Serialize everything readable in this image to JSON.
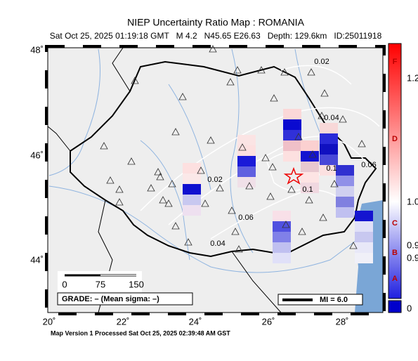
{
  "header": {
    "title": "NIEP Uncertainty Ratio Map : ROMANIA",
    "subtitle": "Sat Oct 25, 2025 01:19:18 GMT   M 4.2   N45.65 E26.63   Depth: 129.6km   ID:25011918"
  },
  "map": {
    "lat_labels": [
      "48˚",
      "46˚",
      "44˚"
    ],
    "lon_labels": [
      "20˚",
      "22˚",
      "24˚",
      "26˚",
      "28˚"
    ],
    "contour_labels": [
      "0.02",
      "0.04",
      "0.06",
      "0.02",
      "0.06",
      "0.04",
      "0.1",
      "0.1"
    ],
    "scale_labels": [
      "0",
      "75",
      "150"
    ],
    "grade": "GRADE: – (Mean sigma: –)",
    "mi": "MI = 6.0"
  },
  "colorbar": {
    "labels": [
      "1.2",
      "1.0",
      "0.9",
      "0.9",
      "0"
    ],
    "grades": [
      "F",
      "D",
      "C",
      "B",
      "A"
    ]
  },
  "footer": "Map Version 1 Processed Sat Oct 25, 2025 02:39:48 AM GST"
}
